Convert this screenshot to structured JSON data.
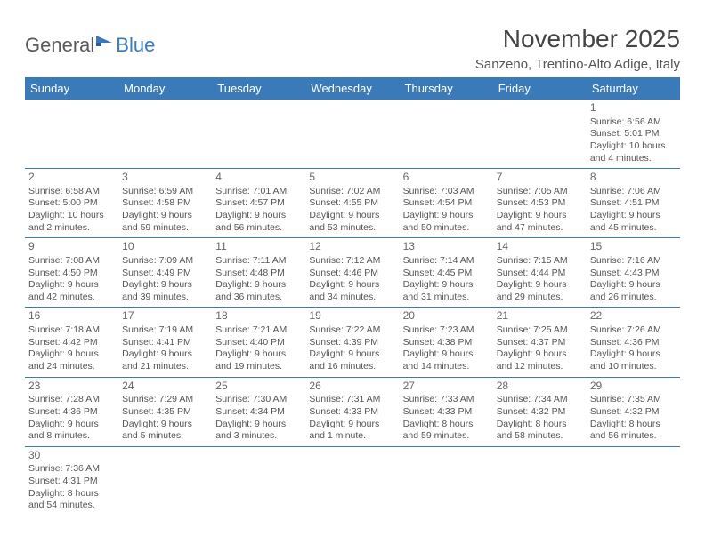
{
  "logo": {
    "text_a": "General",
    "text_b": "Blue"
  },
  "title": "November 2025",
  "location": "Sanzeno, Trentino-Alto Adige, Italy",
  "colors": {
    "header_bg": "#3a7ab8",
    "header_fg": "#ffffff",
    "row_border": "#3a7ab8",
    "text": "#555555"
  },
  "day_headers": [
    "Sunday",
    "Monday",
    "Tuesday",
    "Wednesday",
    "Thursday",
    "Friday",
    "Saturday"
  ],
  "weeks": [
    [
      {
        "n": "",
        "sr": "",
        "ss": "",
        "dl": ""
      },
      {
        "n": "",
        "sr": "",
        "ss": "",
        "dl": ""
      },
      {
        "n": "",
        "sr": "",
        "ss": "",
        "dl": ""
      },
      {
        "n": "",
        "sr": "",
        "ss": "",
        "dl": ""
      },
      {
        "n": "",
        "sr": "",
        "ss": "",
        "dl": ""
      },
      {
        "n": "",
        "sr": "",
        "ss": "",
        "dl": ""
      },
      {
        "n": "1",
        "sr": "Sunrise: 6:56 AM",
        "ss": "Sunset: 5:01 PM",
        "dl": "Daylight: 10 hours and 4 minutes."
      }
    ],
    [
      {
        "n": "2",
        "sr": "Sunrise: 6:58 AM",
        "ss": "Sunset: 5:00 PM",
        "dl": "Daylight: 10 hours and 2 minutes."
      },
      {
        "n": "3",
        "sr": "Sunrise: 6:59 AM",
        "ss": "Sunset: 4:58 PM",
        "dl": "Daylight: 9 hours and 59 minutes."
      },
      {
        "n": "4",
        "sr": "Sunrise: 7:01 AM",
        "ss": "Sunset: 4:57 PM",
        "dl": "Daylight: 9 hours and 56 minutes."
      },
      {
        "n": "5",
        "sr": "Sunrise: 7:02 AM",
        "ss": "Sunset: 4:55 PM",
        "dl": "Daylight: 9 hours and 53 minutes."
      },
      {
        "n": "6",
        "sr": "Sunrise: 7:03 AM",
        "ss": "Sunset: 4:54 PM",
        "dl": "Daylight: 9 hours and 50 minutes."
      },
      {
        "n": "7",
        "sr": "Sunrise: 7:05 AM",
        "ss": "Sunset: 4:53 PM",
        "dl": "Daylight: 9 hours and 47 minutes."
      },
      {
        "n": "8",
        "sr": "Sunrise: 7:06 AM",
        "ss": "Sunset: 4:51 PM",
        "dl": "Daylight: 9 hours and 45 minutes."
      }
    ],
    [
      {
        "n": "9",
        "sr": "Sunrise: 7:08 AM",
        "ss": "Sunset: 4:50 PM",
        "dl": "Daylight: 9 hours and 42 minutes."
      },
      {
        "n": "10",
        "sr": "Sunrise: 7:09 AM",
        "ss": "Sunset: 4:49 PM",
        "dl": "Daylight: 9 hours and 39 minutes."
      },
      {
        "n": "11",
        "sr": "Sunrise: 7:11 AM",
        "ss": "Sunset: 4:48 PM",
        "dl": "Daylight: 9 hours and 36 minutes."
      },
      {
        "n": "12",
        "sr": "Sunrise: 7:12 AM",
        "ss": "Sunset: 4:46 PM",
        "dl": "Daylight: 9 hours and 34 minutes."
      },
      {
        "n": "13",
        "sr": "Sunrise: 7:14 AM",
        "ss": "Sunset: 4:45 PM",
        "dl": "Daylight: 9 hours and 31 minutes."
      },
      {
        "n": "14",
        "sr": "Sunrise: 7:15 AM",
        "ss": "Sunset: 4:44 PM",
        "dl": "Daylight: 9 hours and 29 minutes."
      },
      {
        "n": "15",
        "sr": "Sunrise: 7:16 AM",
        "ss": "Sunset: 4:43 PM",
        "dl": "Daylight: 9 hours and 26 minutes."
      }
    ],
    [
      {
        "n": "16",
        "sr": "Sunrise: 7:18 AM",
        "ss": "Sunset: 4:42 PM",
        "dl": "Daylight: 9 hours and 24 minutes."
      },
      {
        "n": "17",
        "sr": "Sunrise: 7:19 AM",
        "ss": "Sunset: 4:41 PM",
        "dl": "Daylight: 9 hours and 21 minutes."
      },
      {
        "n": "18",
        "sr": "Sunrise: 7:21 AM",
        "ss": "Sunset: 4:40 PM",
        "dl": "Daylight: 9 hours and 19 minutes."
      },
      {
        "n": "19",
        "sr": "Sunrise: 7:22 AM",
        "ss": "Sunset: 4:39 PM",
        "dl": "Daylight: 9 hours and 16 minutes."
      },
      {
        "n": "20",
        "sr": "Sunrise: 7:23 AM",
        "ss": "Sunset: 4:38 PM",
        "dl": "Daylight: 9 hours and 14 minutes."
      },
      {
        "n": "21",
        "sr": "Sunrise: 7:25 AM",
        "ss": "Sunset: 4:37 PM",
        "dl": "Daylight: 9 hours and 12 minutes."
      },
      {
        "n": "22",
        "sr": "Sunrise: 7:26 AM",
        "ss": "Sunset: 4:36 PM",
        "dl": "Daylight: 9 hours and 10 minutes."
      }
    ],
    [
      {
        "n": "23",
        "sr": "Sunrise: 7:28 AM",
        "ss": "Sunset: 4:36 PM",
        "dl": "Daylight: 9 hours and 8 minutes."
      },
      {
        "n": "24",
        "sr": "Sunrise: 7:29 AM",
        "ss": "Sunset: 4:35 PM",
        "dl": "Daylight: 9 hours and 5 minutes."
      },
      {
        "n": "25",
        "sr": "Sunrise: 7:30 AM",
        "ss": "Sunset: 4:34 PM",
        "dl": "Daylight: 9 hours and 3 minutes."
      },
      {
        "n": "26",
        "sr": "Sunrise: 7:31 AM",
        "ss": "Sunset: 4:33 PM",
        "dl": "Daylight: 9 hours and 1 minute."
      },
      {
        "n": "27",
        "sr": "Sunrise: 7:33 AM",
        "ss": "Sunset: 4:33 PM",
        "dl": "Daylight: 8 hours and 59 minutes."
      },
      {
        "n": "28",
        "sr": "Sunrise: 7:34 AM",
        "ss": "Sunset: 4:32 PM",
        "dl": "Daylight: 8 hours and 58 minutes."
      },
      {
        "n": "29",
        "sr": "Sunrise: 7:35 AM",
        "ss": "Sunset: 4:32 PM",
        "dl": "Daylight: 8 hours and 56 minutes."
      }
    ],
    [
      {
        "n": "30",
        "sr": "Sunrise: 7:36 AM",
        "ss": "Sunset: 4:31 PM",
        "dl": "Daylight: 8 hours and 54 minutes."
      },
      {
        "n": "",
        "sr": "",
        "ss": "",
        "dl": ""
      },
      {
        "n": "",
        "sr": "",
        "ss": "",
        "dl": ""
      },
      {
        "n": "",
        "sr": "",
        "ss": "",
        "dl": ""
      },
      {
        "n": "",
        "sr": "",
        "ss": "",
        "dl": ""
      },
      {
        "n": "",
        "sr": "",
        "ss": "",
        "dl": ""
      },
      {
        "n": "",
        "sr": "",
        "ss": "",
        "dl": ""
      }
    ]
  ]
}
